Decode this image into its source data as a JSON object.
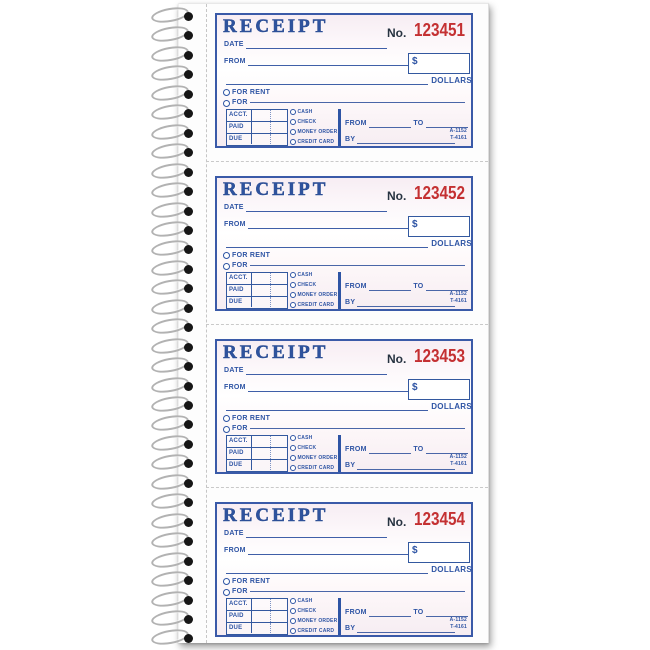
{
  "colors": {
    "form_blue": "#2e54a4",
    "number_red": "#c43032",
    "no_label_dark": "#273341",
    "wire_gray": "#b2b2b2",
    "hole_black": "#161616",
    "perforation_gray": "#c9c9c9"
  },
  "binding": {
    "coil_count": 33
  },
  "labels": {
    "title": "RECEIPT",
    "number_prefix": "No.",
    "date": "DATE",
    "from": "FROM",
    "currency": "$",
    "dollars": "DOLLARS",
    "for_rent": "FOR RENT",
    "for": "FOR",
    "account_rows": [
      "ACCT.",
      "PAID",
      "DUE"
    ],
    "payment_methods": [
      "CASH",
      "CHECK",
      "MONEY ORDER",
      "CREDIT CARD"
    ],
    "range_from": "FROM",
    "range_to": "TO",
    "by": "BY",
    "form_codes": [
      "A-1152",
      "T-4161"
    ]
  },
  "receipts": [
    {
      "number": "123451"
    },
    {
      "number": "123452"
    },
    {
      "number": "123453"
    },
    {
      "number": "123454"
    }
  ]
}
